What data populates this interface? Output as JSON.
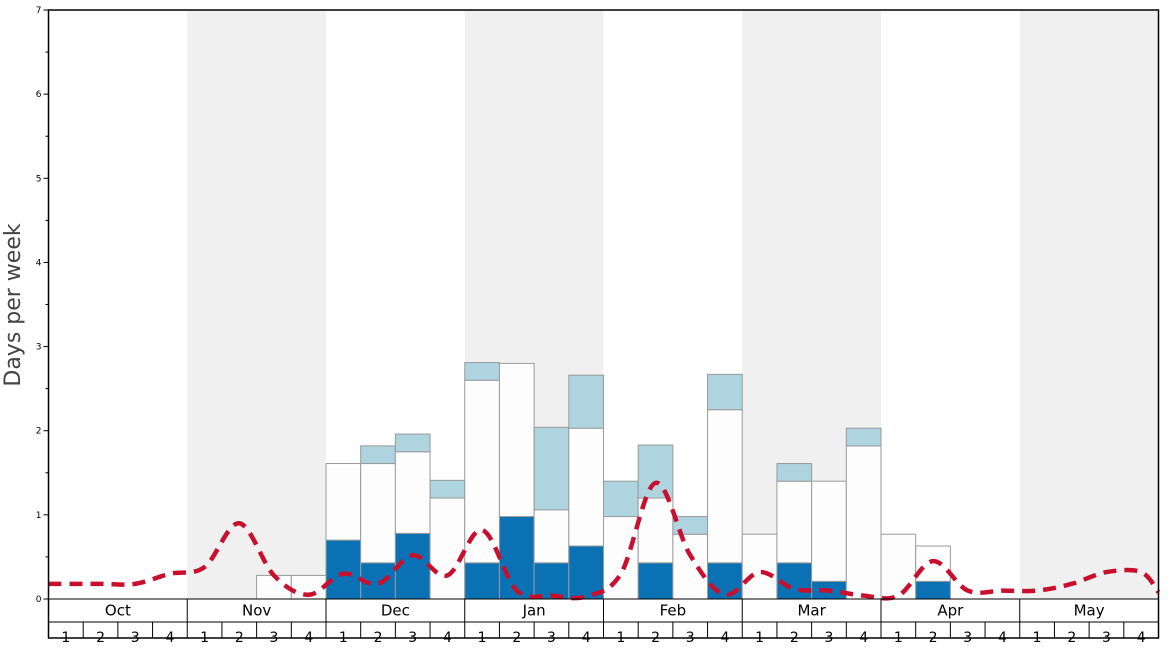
{
  "chart_data": {
    "type": "bar",
    "stacked": true,
    "ylabel": "Days per week",
    "ylim": [
      0,
      7
    ],
    "y_major_ticks": [
      0,
      1,
      2,
      3,
      4,
      5,
      6,
      7
    ],
    "grid": false,
    "month_shading": "alternating grey columns (Nov, Jan, Mar, May)",
    "months": [
      "Oct",
      "Nov",
      "Dec",
      "Jan",
      "Feb",
      "Mar",
      "Apr",
      "May"
    ],
    "weeks": [
      "1",
      "2",
      "3",
      "4"
    ],
    "colors": {
      "dark_blue": "#0a72b4",
      "light_blue": "#aed4e0",
      "white": "#fdfdfd",
      "bar_edge": "#9a9a9a",
      "line": "#c8102e",
      "shade": "#f0f0f0"
    },
    "series": [
      {
        "color": "#0a72b4",
        "values": [
          0,
          0,
          0,
          0,
          0,
          0,
          0,
          0,
          0.7,
          0.43,
          0.78,
          0,
          0.43,
          0.98,
          0.43,
          0.63,
          0,
          0.43,
          0,
          0.43,
          0,
          0.43,
          0.21,
          0,
          0,
          0.21,
          0,
          0,
          0,
          0,
          0,
          0
        ]
      },
      {
        "color": "#fdfdfd",
        "values": [
          0,
          0,
          0,
          0,
          0,
          0,
          0.28,
          0.28,
          0.91,
          1.18,
          0.97,
          1.2,
          2.17,
          1.82,
          0.63,
          1.4,
          0.98,
          0.77,
          0.77,
          1.82,
          0.77,
          0.97,
          1.19,
          1.82,
          0.77,
          0.42,
          0,
          0,
          0,
          0,
          0,
          0
        ]
      },
      {
        "color": "#aed4e0",
        "values": [
          0,
          0,
          0,
          0,
          0,
          0,
          0,
          0,
          0,
          0.21,
          0.21,
          0.21,
          0.21,
          0,
          0.98,
          0.63,
          0.42,
          0.63,
          0.21,
          0.42,
          0,
          0.21,
          0,
          0.21,
          0,
          0,
          0,
          0,
          0,
          0,
          0,
          0
        ]
      }
    ],
    "line": {
      "style": "dashed",
      "color": "#c8102e",
      "values": [
        0.18,
        0.18,
        0.18,
        0.3,
        0.38,
        0.9,
        0.28,
        0.05,
        0.3,
        0.18,
        0.52,
        0.28,
        0.82,
        0.1,
        0.04,
        0.03,
        0.3,
        1.38,
        0.52,
        0.05,
        0.32,
        0.12,
        0.1,
        0.04,
        0.04,
        0.45,
        0.1,
        0.1,
        0.1,
        0.18,
        0.32,
        0.32
      ]
    }
  }
}
